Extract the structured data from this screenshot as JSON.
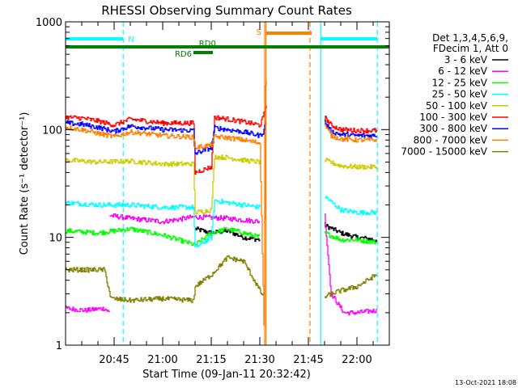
{
  "chart_data": {
    "type": "line",
    "title": "RHESSI Observing Summary Count Rates",
    "xlabel": "Start Time (09-Jan-11 20:32:42)",
    "ylabel": "Count Rate (s⁻¹ detector⁻¹)",
    "yscale": "log",
    "ylim": [
      1,
      1000
    ],
    "xlim_min": [
      0,
      100
    ],
    "x_ticks": [
      {
        "t": 15,
        "label": "20:45"
      },
      {
        "t": 30,
        "label": "21:00"
      },
      {
        "t": 45,
        "label": "21:15"
      },
      {
        "t": 60,
        "label": "21:30"
      },
      {
        "t": 75,
        "label": "21:45"
      },
      {
        "t": 90,
        "label": "22:00"
      }
    ],
    "y_ticks": [
      {
        "v": 1,
        "label": "1"
      },
      {
        "v": 10,
        "label": "10"
      },
      {
        "v": 100,
        "label": "100"
      },
      {
        "v": 1000,
        "label": "1000"
      }
    ],
    "legend_header": [
      "Det 1,3,4,5,6,9,",
      "FDecim 1, Att 0"
    ],
    "gaps": [
      [
        76.5,
        79.0
      ]
    ],
    "vlines": [
      {
        "t": 17.8,
        "color": "#00ffff",
        "style": "dash"
      },
      {
        "t": 61.5,
        "color": "#ff8000",
        "style": "solid"
      },
      {
        "t": 61.9,
        "color": "#ff8000",
        "style": "solid"
      },
      {
        "t": 75.5,
        "color": "#ff8000",
        "style": "dash"
      },
      {
        "t": 78.8,
        "color": "#00ffff",
        "style": "solid"
      },
      {
        "t": 96.3,
        "color": "#00ffff",
        "style": "dash"
      }
    ],
    "flags": [
      {
        "label": "N",
        "color": "#00ffff",
        "segments": [
          [
            0,
            17.8
          ],
          [
            78.8,
            96.3
          ]
        ],
        "level": "high"
      },
      {
        "label": "S",
        "color": "#ff8000",
        "segments": [
          [
            62,
            76
          ]
        ],
        "level": "higher"
      },
      {
        "label": "RD0",
        "color": "#008000",
        "segments": [
          [
            0,
            100
          ]
        ],
        "level": "mid"
      },
      {
        "label": "RD6",
        "color": "#008000",
        "segments": [
          [
            39.5,
            45.5
          ]
        ],
        "level": "low"
      }
    ],
    "series": [
      {
        "name": "3 - 6 keV",
        "color": "#000000",
        "segments": [
          {
            "x": [
              40,
              45,
              50,
              55,
              60
            ],
            "values": [
              12,
              11,
              11.5,
              10,
              9.5
            ]
          },
          {
            "x": [
              80,
              85,
              90,
              96
            ],
            "values": [
              13,
              11,
              10,
              9.5
            ]
          }
        ]
      },
      {
        "name": "6 - 12 keV",
        "color": "#ff00ff",
        "segments": [
          {
            "x": [
              0,
              6,
              12,
              13.5
            ],
            "values": [
              2.2,
              2.1,
              2.2,
              2.0
            ]
          },
          {
            "x": [
              13.6,
              20,
              30,
              40,
              50,
              60
            ],
            "values": [
              16,
              15,
              14,
              15.5,
              15,
              14
            ]
          },
          {
            "x": [
              80,
              82,
              86,
              90,
              96
            ],
            "values": [
              16,
              3,
              2,
              2,
              2.1
            ]
          }
        ]
      },
      {
        "name": "12 - 25 keV",
        "color": "#00ff00",
        "segments": [
          {
            "x": [
              0,
              10,
              20,
              30,
              40,
              45,
              50,
              55,
              60
            ],
            "values": [
              11.5,
              11,
              12,
              10.5,
              8.5,
              11,
              12,
              11,
              10
            ]
          },
          {
            "x": [
              80,
              85,
              90,
              96
            ],
            "values": [
              11,
              9.5,
              9.5,
              9
            ]
          }
        ]
      },
      {
        "name": "25 - 50 keV",
        "color": "#00ffff",
        "segments": [
          {
            "x": [
              0,
              10,
              20,
              30,
              39.5,
              40,
              45,
              46,
              50,
              55,
              60
            ],
            "values": [
              21,
              20,
              20,
              19,
              19,
              8,
              10,
              22,
              21,
              20,
              19
            ]
          },
          {
            "x": [
              80,
              85,
              90,
              96
            ],
            "values": [
              24,
              18,
              17,
              17
            ]
          }
        ]
      },
      {
        "name": "50 - 100 keV",
        "color": "#cccc00",
        "segments": [
          {
            "x": [
              0,
              10,
              20,
              30,
              39.5,
              40,
              45,
              46,
              50,
              55,
              60
            ],
            "values": [
              52,
              50,
              51,
              48,
              48,
              17,
              18,
              56,
              55,
              52,
              50
            ]
          },
          {
            "x": [
              80,
              85,
              90,
              96
            ],
            "values": [
              52,
              46,
              45,
              45
            ]
          }
        ]
      },
      {
        "name": "100 - 300 keV",
        "color": "#ff0000",
        "segments": [
          {
            "x": [
              0,
              5,
              10,
              15,
              20,
              30,
              39.5,
              40,
              45,
              46,
              50,
              55,
              60,
              61,
              62
            ],
            "values": [
              130,
              128,
              120,
              110,
              125,
              115,
              115,
              40,
              45,
              130,
              125,
              118,
              110,
              130,
              170
            ]
          },
          {
            "x": [
              80,
              82,
              85,
              90,
              96
            ],
            "values": [
              130,
              110,
              100,
              98,
              98
            ]
          }
        ]
      },
      {
        "name": "300 - 800 keV",
        "color": "#0000ff",
        "segments": [
          {
            "x": [
              0,
              5,
              10,
              15,
              20,
              30,
              39.5,
              40,
              45,
              46,
              50,
              55,
              60,
              61,
              62
            ],
            "values": [
              115,
              112,
              105,
              96,
              108,
              100,
              98,
              60,
              68,
              104,
              100,
              95,
              88,
              95,
              120
            ]
          },
          {
            "x": [
              80,
              82,
              85,
              90,
              96
            ],
            "values": [
              118,
              96,
              90,
              88,
              88
            ]
          }
        ]
      },
      {
        "name": "800 - 7000 keV",
        "color": "#ff8000",
        "segments": [
          {
            "x": [
              0,
              5,
              10,
              15,
              20,
              30,
              39.5,
              40,
              45,
              46,
              50,
              55,
              60,
              61.4,
              61.6,
              62,
              62.2
            ],
            "values": [
              105,
              100,
              92,
              86,
              95,
              88,
              85,
              68,
              72,
              86,
              84,
              80,
              75,
              1,
              220,
              300,
              250
            ]
          },
          {
            "x": [
              80,
              82,
              85,
              90,
              96
            ],
            "values": [
              110,
              88,
              82,
              80,
              80
            ]
          }
        ]
      },
      {
        "name": "7000 - 15000 keV",
        "color": "#808000",
        "segments": [
          {
            "x": [
              0,
              6,
              12,
              14,
              20,
              30,
              39.5,
              40,
              45,
              50,
              55,
              60,
              61.2
            ],
            "values": [
              5,
              5,
              5,
              2.7,
              2.6,
              2.7,
              2.6,
              3.5,
              4.5,
              6.5,
              6,
              3.2,
              2.8
            ]
          },
          {
            "x": [
              80,
              82,
              85,
              90,
              96
            ],
            "values": [
              2.8,
              3,
              3.2,
              3.5,
              4.5
            ]
          }
        ]
      }
    ]
  },
  "footer_date": "13-Oct-2021 18:08"
}
